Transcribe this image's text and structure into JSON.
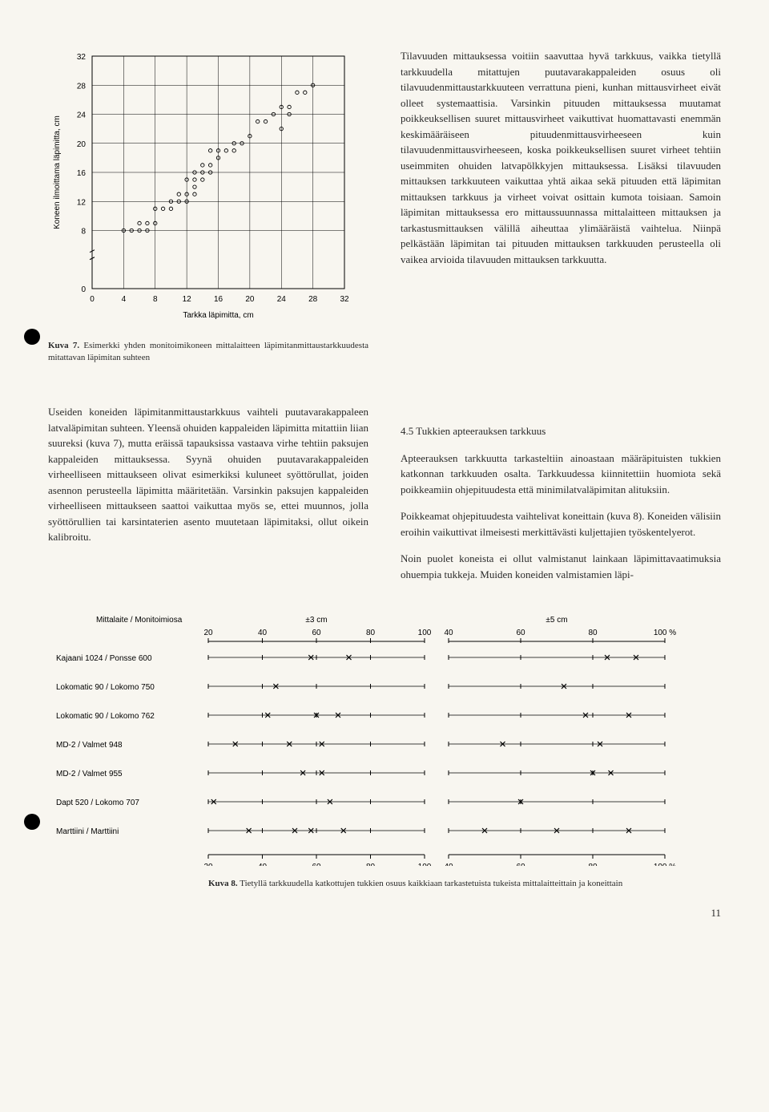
{
  "chart7": {
    "y_label": "Koneen ilmoittama läpimitta, cm",
    "x_label": "Tarkka läpimitta, cm",
    "x_ticks": [
      0,
      4,
      8,
      12,
      16,
      20,
      24,
      28,
      32
    ],
    "y_ticks": [
      0,
      8,
      12,
      16,
      20,
      24,
      28,
      32
    ],
    "points": [
      [
        4,
        8
      ],
      [
        5,
        8
      ],
      [
        6,
        8
      ],
      [
        7,
        8
      ],
      [
        6,
        9
      ],
      [
        7,
        9
      ],
      [
        8,
        9
      ],
      [
        8,
        11
      ],
      [
        9,
        11
      ],
      [
        10,
        11
      ],
      [
        10,
        12
      ],
      [
        11,
        12
      ],
      [
        12,
        12
      ],
      [
        11,
        13
      ],
      [
        12,
        13
      ],
      [
        13,
        13
      ],
      [
        13,
        14
      ],
      [
        12,
        15
      ],
      [
        13,
        15
      ],
      [
        14,
        15
      ],
      [
        13,
        16
      ],
      [
        14,
        16
      ],
      [
        15,
        16
      ],
      [
        14,
        17
      ],
      [
        15,
        17
      ],
      [
        16,
        18
      ],
      [
        15,
        19
      ],
      [
        16,
        19
      ],
      [
        17,
        19
      ],
      [
        18,
        19
      ],
      [
        18,
        20
      ],
      [
        19,
        20
      ],
      [
        20,
        21
      ],
      [
        21,
        23
      ],
      [
        22,
        23
      ],
      [
        23,
        24
      ],
      [
        24,
        22
      ],
      [
        24,
        25
      ],
      [
        25,
        25
      ],
      [
        25,
        24
      ],
      [
        26,
        27
      ],
      [
        27,
        27
      ],
      [
        28,
        28
      ]
    ],
    "caption_label": "Kuva 7.",
    "caption_text": "Esimerkki yhden monitoimikoneen mittalaitteen läpimitanmittaustarkkuudesta mitattavan läpimitan suhteen",
    "font_size_axis": 10,
    "line_color": "#000000",
    "point_color": "#000000"
  },
  "body_text": {
    "left_p1": "Useiden koneiden läpimitanmittaustarkkuus vaihteli puutavarakappaleen latvaläpimitan suhteen. Yleensä ohuiden kappaleiden läpimitta mitattiin liian suureksi (kuva 7), mutta eräissä tapauksissa vastaava virhe tehtiin paksujen kappaleiden mittauksessa. Syynä ohuiden puutavarakappaleiden virheelliseen mittaukseen olivat esimerkiksi kuluneet syöttörullat, joiden asennon perusteella läpimitta määritetään. Varsinkin paksujen kappaleiden virheelliseen mittaukseen saattoi vaikuttaa myös se, ettei muunnos, jolla syöttörullien tai karsintaterien asento muutetaan läpimitaksi, ollut oikein kalibroitu.",
    "right_p1": "Tilavuuden mittauksessa voitiin saavuttaa hyvä tarkkuus, vaikka tietyllä tarkkuudella mitattujen puutavarakappaleiden osuus oli tilavuudenmittaustarkkuuteen verrattuna pieni, kunhan mittausvirheet eivät olleet systemaattisia. Varsinkin pituuden mittauksessa muutamat poikkeuksellisen suuret mittausvirheet vaikuttivat huomattavasti enemmän keskimääräiseen pituudenmittausvirheeseen kuin tilavuudenmittausvirheeseen, koska poikkeuksellisen suuret virheet tehtiin useimmiten ohuiden latvapölkkyjen mittauksessa. Lisäksi tilavuuden mittauksen tarkkuuteen vaikuttaa yhtä aikaa sekä pituuden että läpimitan mittauksen tarkkuus ja virheet voivat osittain kumota toisiaan. Samoin läpimitan mittauksessa ero mittaussuunnassa mittalaitteen mittauksen ja tarkastusmittauksen välillä aiheuttaa ylimääräistä vaihtelua. Niinpä pelkästään läpimitan tai pituuden mittauksen tarkkuuden perusteella oli vaikea arvioida tilavuuden mittauksen tarkkuutta.",
    "section45": "4.5  Tukkien apteerauksen tarkkuus",
    "right_p2": "Apteerauksen tarkkuutta tarkasteltiin ainoastaan määräpituisten tukkien katkonnan tarkkuuden osalta. Tarkkuudessa kiinnitettiin huomiota sekä poikkeamiin ohjepituudesta että minimilatvaläpimitan alituksiin.",
    "right_p3": "Poikkeamat ohjepituudesta vaihtelivat koneittain (kuva 8). Koneiden välisiin eroihin vaikuttivat ilmeisesti merkittävästi kuljettajien työskentelyerot.",
    "right_p4": "Noin puolet koneista ei ollut valmistanut lainkaan läpimittavaatimuksia ohuempia tukkeja. Muiden koneiden valmistamien läpi-"
  },
  "chart8": {
    "title": "Mittalaite / Monitoimiosa",
    "left_label": "±3 cm",
    "right_label": "±5 cm",
    "x_ticks": [
      20,
      40,
      60,
      80,
      100
    ],
    "x_ticks_pct": [
      40,
      60,
      80,
      "100 %"
    ],
    "rows": [
      {
        "label": "Kajaani 1024 / Ponsse 600",
        "l": [
          58,
          72
        ],
        "r": [
          84,
          92
        ]
      },
      {
        "label": "Lokomatic 90 / Lokomo 750",
        "l": [
          45
        ],
        "r": [
          72
        ]
      },
      {
        "label": "Lokomatic 90 / Lokomo 762",
        "l": [
          42,
          60,
          68
        ],
        "r": [
          78,
          90
        ]
      },
      {
        "label": "MD-2          / Valmet 948",
        "l": [
          30,
          50,
          62
        ],
        "r": [
          55,
          82
        ]
      },
      {
        "label": "MD-2          / Valmet 955",
        "l": [
          55,
          62
        ],
        "r": [
          80,
          85
        ]
      },
      {
        "label": "Dapt 520      / Lokomo 707",
        "l": [
          22,
          65
        ],
        "r": [
          60
        ]
      },
      {
        "label": "Marttiini     / Marttiini",
        "l": [
          35,
          52,
          58,
          70
        ],
        "r": [
          50,
          70,
          90
        ]
      }
    ],
    "caption_label": "Kuva 8.",
    "caption_text": "Tietyllä tarkkuudella katkottujen tukkien osuus kaikkiaan tarkastetuista tukeista mittalaitteittain ja koneittain",
    "font_size": 10,
    "line_color": "#000000"
  },
  "page_number": "11"
}
